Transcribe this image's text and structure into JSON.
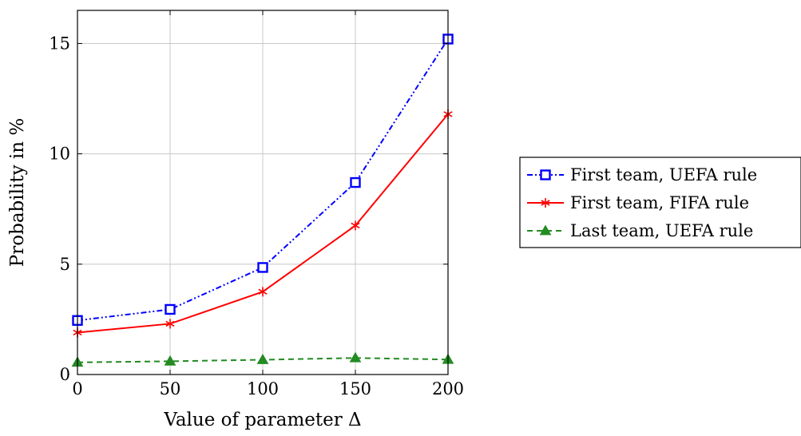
{
  "chart_data": {
    "type": "line",
    "xlabel": "Value of parameter Δ",
    "ylabel": "Probability in %",
    "x": [
      0,
      50,
      100,
      150,
      200
    ],
    "xlim": [
      0,
      200
    ],
    "ylim": [
      0,
      16.5
    ],
    "xticks": [
      "0",
      "50",
      "100",
      "150",
      "200"
    ],
    "yticks": [
      "0",
      "5",
      "10",
      "15"
    ],
    "grid": true,
    "legend_position": "right-outside",
    "series": [
      {
        "name": "First team, UEFA rule",
        "values": [
          2.45,
          2.95,
          4.85,
          8.7,
          15.2
        ],
        "color": "#0000ff",
        "marker": "square",
        "line_style": "dash-dot-dot"
      },
      {
        "name": "First team, FIFA rule",
        "values": [
          1.9,
          2.3,
          3.75,
          6.75,
          11.8
        ],
        "color": "#ff0000",
        "marker": "asterisk",
        "line_style": "solid"
      },
      {
        "name": "Last team, UEFA rule",
        "values": [
          0.55,
          0.6,
          0.67,
          0.75,
          0.68
        ],
        "color": "#228b22",
        "marker": "triangle",
        "line_style": "dashed"
      }
    ]
  }
}
